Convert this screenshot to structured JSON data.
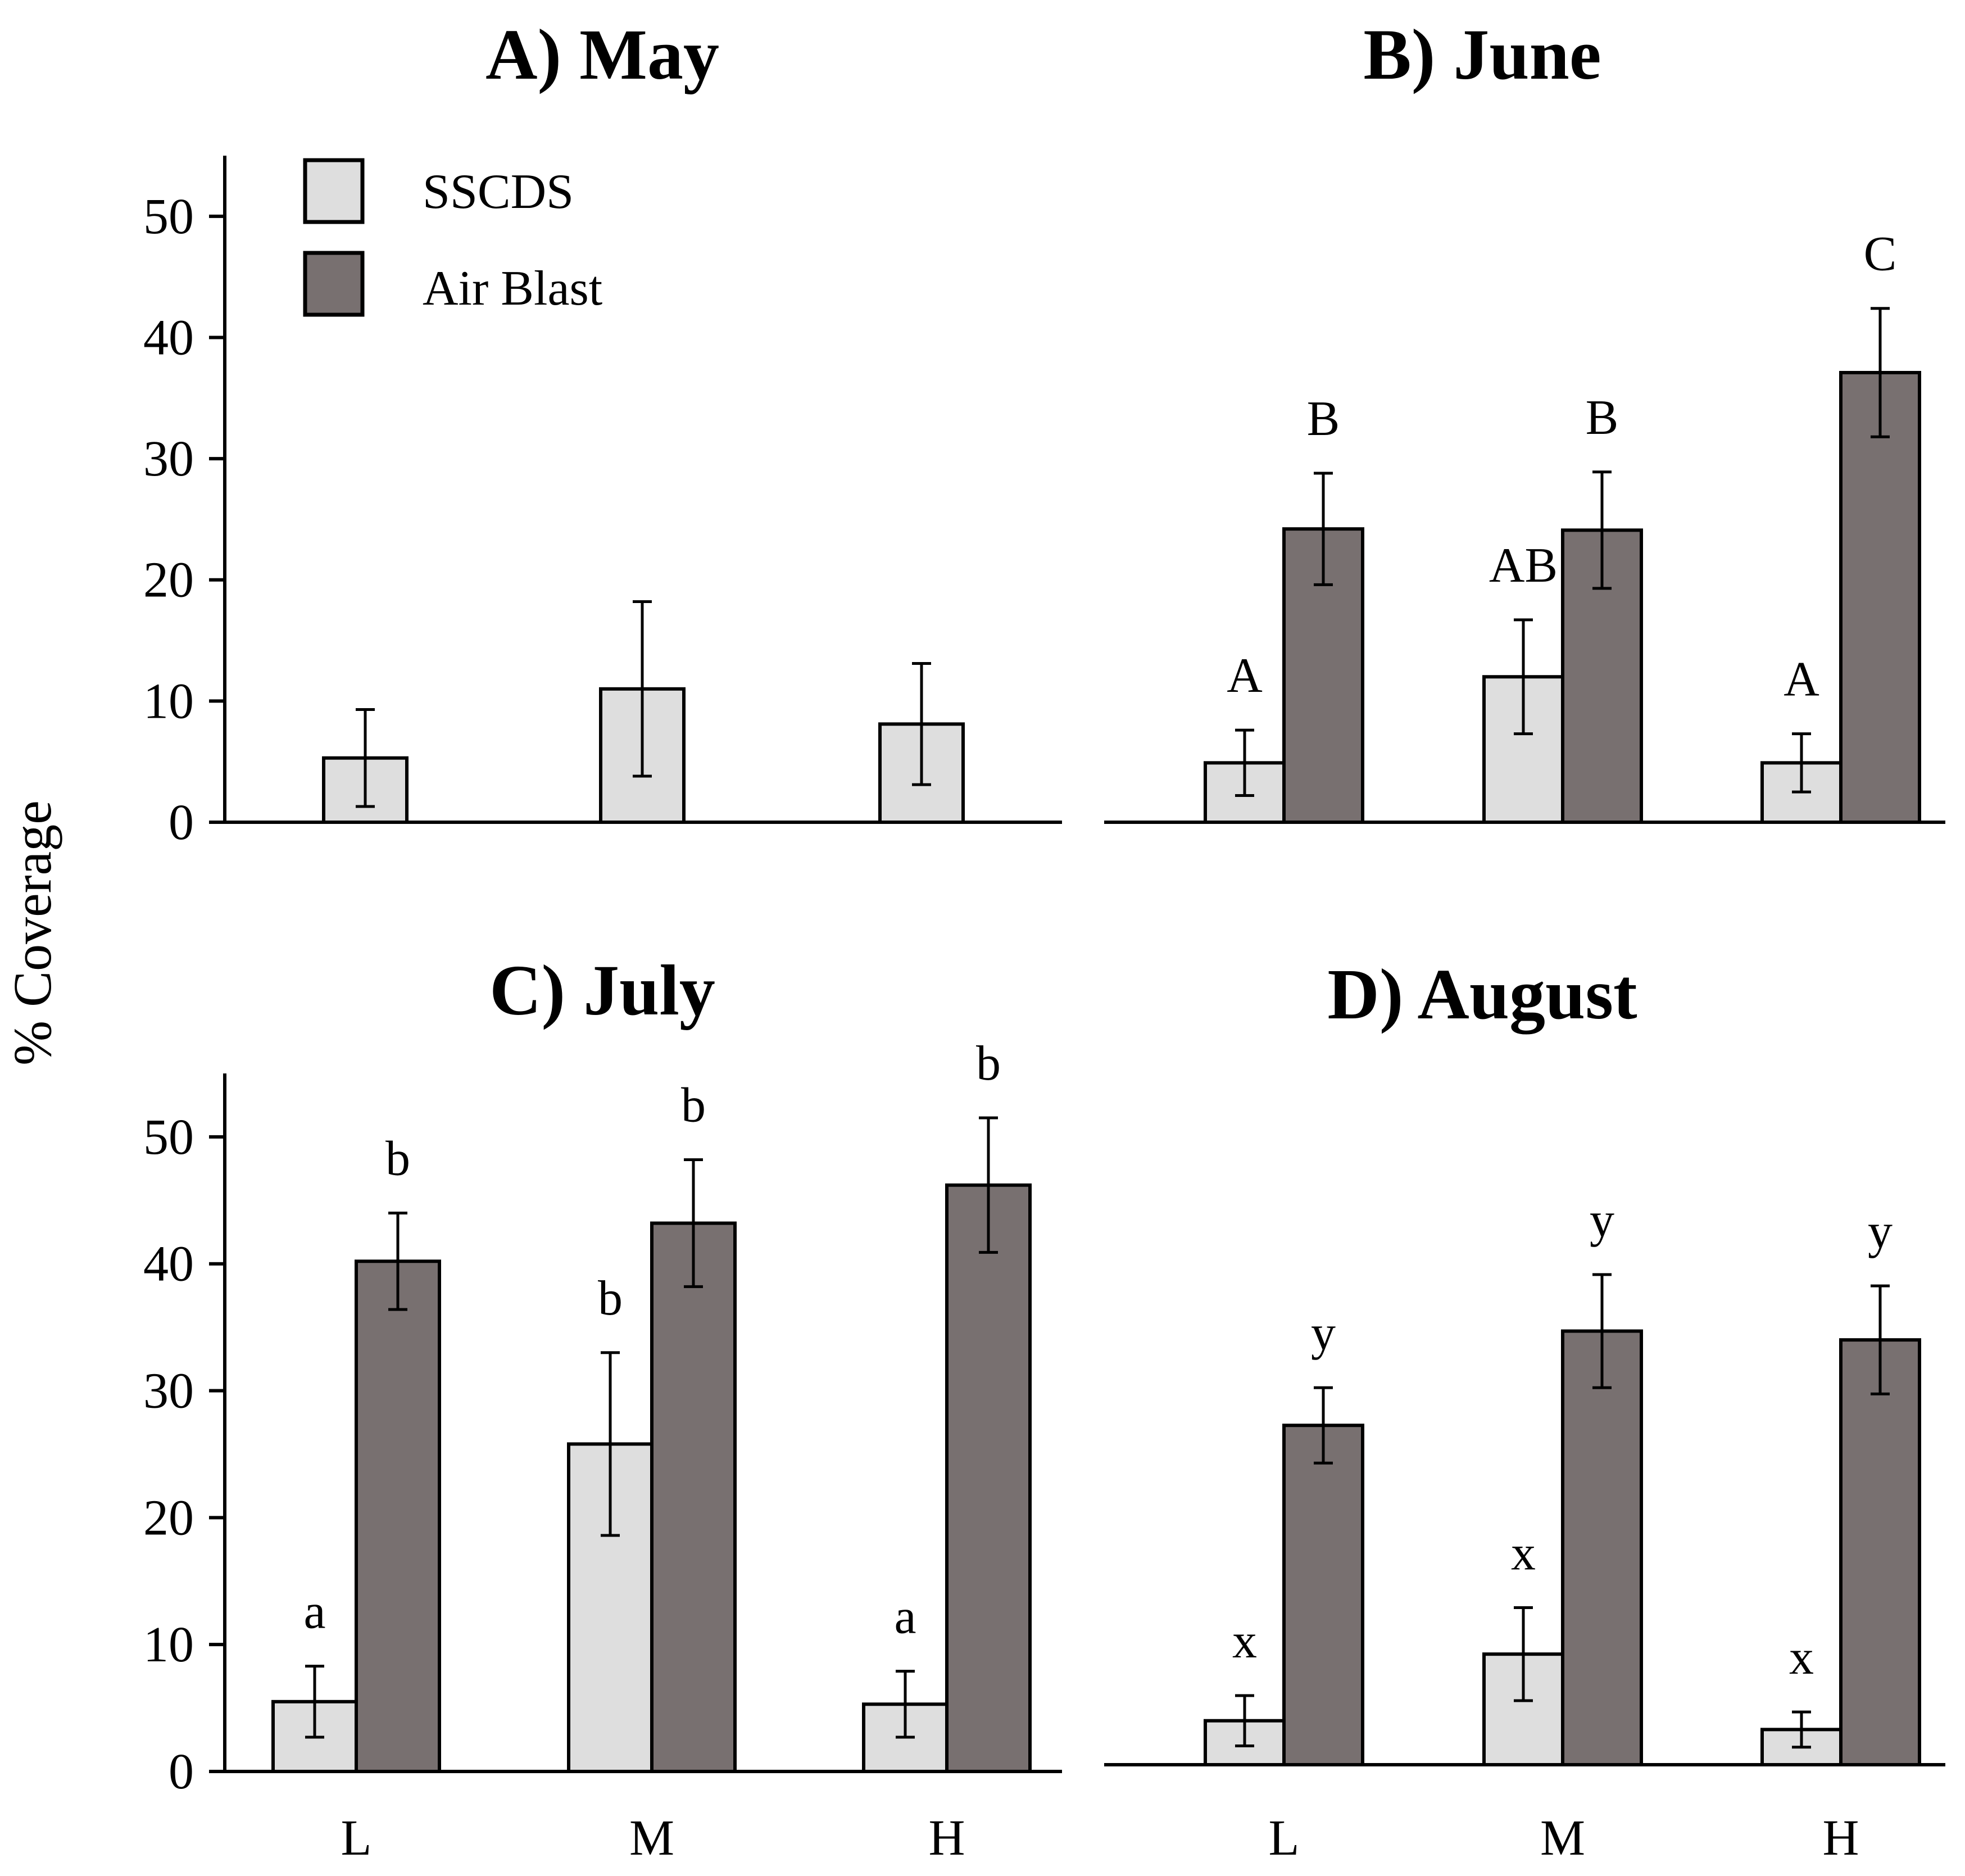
{
  "chart_data": {
    "type": "bar",
    "y_axis_label": "% Coverage",
    "legend": [
      {
        "name": "SSCDS",
        "color": "#dedede"
      },
      {
        "name": "Air Blast",
        "color": "#787070"
      }
    ],
    "panels": [
      {
        "title": "A) May",
        "categories": [
          "L",
          "M",
          "H"
        ],
        "ylim": [
          0,
          55
        ],
        "yticks": [
          "0",
          "10",
          "20",
          "30",
          "40",
          "50"
        ],
        "show_y_axis": true,
        "show_x_labels": false,
        "series": [
          {
            "name": "SSCDS",
            "values": [
              5.3,
              11.0,
              8.1
            ],
            "errors": [
              4.0,
              7.2,
              5.0
            ],
            "letters": [
              "",
              "",
              ""
            ]
          }
        ]
      },
      {
        "title": "B) June",
        "categories": [
          "L",
          "M",
          "H"
        ],
        "ylim": [
          0,
          55
        ],
        "yticks": [],
        "show_y_axis": false,
        "show_x_labels": false,
        "series": [
          {
            "name": "SSCDS",
            "values": [
              4.9,
              12.0,
              4.9
            ],
            "errors": [
              2.7,
              4.7,
              2.4
            ],
            "letters": [
              "A",
              "AB",
              "A"
            ]
          },
          {
            "name": "Air Blast",
            "values": [
              24.2,
              24.1,
              37.1
            ],
            "errors": [
              4.6,
              4.8,
              5.3
            ],
            "letters": [
              "B",
              "B",
              "C"
            ]
          }
        ]
      },
      {
        "title": "C) July",
        "categories": [
          "L",
          "M",
          "H"
        ],
        "ylim": [
          0,
          55
        ],
        "yticks": [
          "0",
          "10",
          "20",
          "30",
          "40",
          "50"
        ],
        "show_y_axis": true,
        "show_x_labels": true,
        "series": [
          {
            "name": "SSCDS",
            "values": [
              5.5,
              25.8,
              5.3
            ],
            "errors": [
              2.8,
              7.2,
              2.6
            ],
            "letters": [
              "a",
              "b",
              "a"
            ]
          },
          {
            "name": "Air Blast",
            "values": [
              40.2,
              43.2,
              46.2
            ],
            "errors": [
              3.8,
              5.0,
              5.3
            ],
            "letters": [
              "b",
              "b",
              "b"
            ]
          }
        ]
      },
      {
        "title": "D) August",
        "categories": [
          "L",
          "M",
          "H"
        ],
        "ylim": [
          0,
          55
        ],
        "yticks": [],
        "show_y_axis": false,
        "show_x_labels": true,
        "series": [
          {
            "name": "SSCDS",
            "values": [
              3.5,
              8.8,
              2.8
            ],
            "errors": [
              2.0,
              3.7,
              1.4
            ],
            "letters": [
              "x",
              "x",
              "x"
            ]
          },
          {
            "name": "Air Blast",
            "values": [
              27.0,
              34.5,
              33.8
            ],
            "errors": [
              3.0,
              4.5,
              4.3
            ],
            "letters": [
              "y",
              "y",
              "y"
            ]
          }
        ]
      }
    ]
  }
}
